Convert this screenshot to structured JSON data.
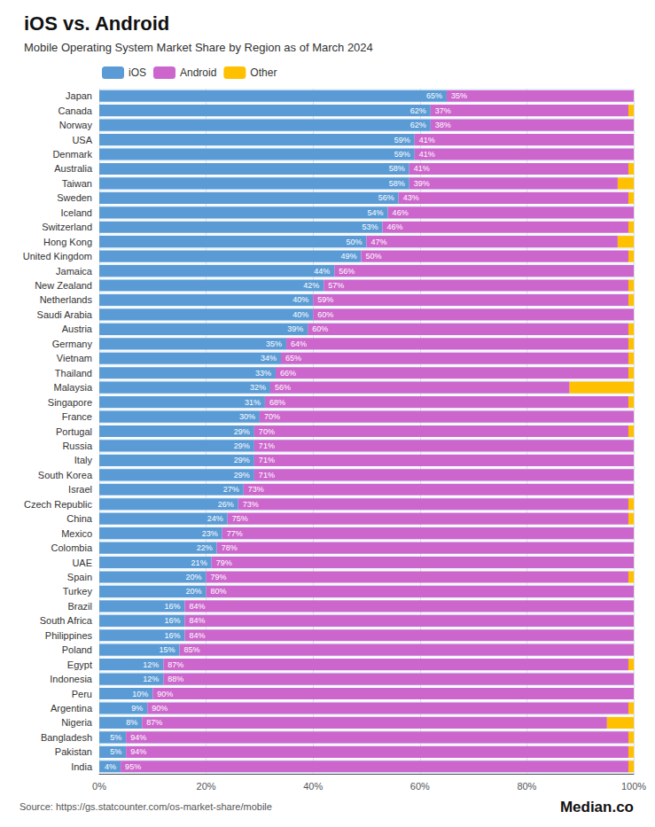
{
  "chart_data": {
    "type": "bar",
    "orientation": "horizontal",
    "stacked": true,
    "title": "iOS vs. Android",
    "subtitle": "Mobile Operating System Market Share by Region as of March 2024",
    "annotations": [
      "Source: https://gs.statcounter.com/os-market-share/mobile",
      "Median.co"
    ],
    "categories": [
      "Japan",
      "Canada",
      "Norway",
      "USA",
      "Denmark",
      "Australia",
      "Taiwan",
      "Sweden",
      "Iceland",
      "Switzerland",
      "Hong Kong",
      "United Kingdom",
      "Jamaica",
      "New Zealand",
      "Netherlands",
      "Saudi Arabia",
      "Austria",
      "Germany",
      "Vietnam",
      "Thailand",
      "Malaysia",
      "Singapore",
      "France",
      "Portugal",
      "Russia",
      "Italy",
      "South Korea",
      "Israel",
      "Czech Republic",
      "China",
      "Mexico",
      "Colombia",
      "UAE",
      "Spain",
      "Turkey",
      "Brazil",
      "South Africa",
      "Philippines",
      "Poland",
      "Egypt",
      "Indonesia",
      "Peru",
      "Argentina",
      "Nigeria",
      "Bangladesh",
      "Pakistan",
      "India"
    ],
    "series": [
      {
        "name": "iOS",
        "color": "#5B9BD5",
        "data_labels": true,
        "values": [
          65,
          62,
          62,
          59,
          59,
          58,
          58,
          56,
          54,
          53,
          50,
          49,
          44,
          42,
          40,
          40,
          39,
          35,
          34,
          33,
          32,
          31,
          30,
          29,
          29,
          29,
          29,
          27,
          26,
          24,
          23,
          22,
          21,
          20,
          20,
          16,
          16,
          16,
          15,
          12,
          12,
          10,
          9,
          8,
          5,
          5,
          4
        ],
        "value_labels": [
          "65%",
          "62%",
          "62%",
          "59%",
          "59%",
          "58%",
          "58%",
          "56%",
          "54%",
          "53%",
          "50%",
          "49%",
          "44%",
          "42%",
          "40%",
          "40%",
          "39%",
          "35%",
          "34%",
          "33%",
          "32%",
          "31%",
          "30%",
          "29%",
          "29%",
          "29%",
          "29%",
          "27%",
          "26%",
          "24%",
          "23%",
          "22%",
          "21%",
          "20%",
          "20%",
          "16%",
          "16%",
          "16%",
          "15%",
          "12%",
          "12%",
          "10%",
          "9%",
          "8%",
          "5%",
          "5%",
          "4%"
        ]
      },
      {
        "name": "Android",
        "color": "#CC66CC",
        "data_labels": true,
        "values": [
          35,
          37,
          38,
          41,
          41,
          41,
          39,
          43,
          46,
          46,
          47,
          50,
          56,
          57,
          59,
          60,
          60,
          64,
          65,
          66,
          56,
          68,
          70,
          70,
          71,
          71,
          71,
          73,
          73,
          75,
          77,
          78,
          79,
          79,
          80,
          84,
          84,
          84,
          85,
          87,
          88,
          90,
          90,
          87,
          94,
          94,
          95
        ],
        "value_labels": [
          "35%",
          "37%",
          "38%",
          "41%",
          "41%",
          "41%",
          "39%",
          "43%",
          "46%",
          "46%",
          "47%",
          "50%",
          "56%",
          "57%",
          "59%",
          "60%",
          "60%",
          "64%",
          "65%",
          "66%",
          "56%",
          "68%",
          "70%",
          "70%",
          "71%",
          "71%",
          "71%",
          "73%",
          "73%",
          "75%",
          "77%",
          "78%",
          "79%",
          "79%",
          "80%",
          "84%",
          "84%",
          "84%",
          "85%",
          "87%",
          "88%",
          "90%",
          "90%",
          "87%",
          "94%",
          "94%",
          "95%"
        ]
      },
      {
        "name": "Other",
        "color": "#FFC000",
        "data_labels": false,
        "values": [
          0,
          1,
          0,
          0,
          0,
          1,
          3,
          1,
          0,
          1,
          3,
          1,
          0,
          1,
          1,
          0,
          1,
          1,
          1,
          1,
          12,
          1,
          0,
          1,
          0,
          0,
          0,
          0,
          1,
          1,
          0,
          0,
          0,
          1,
          0,
          0,
          0,
          0,
          0,
          1,
          0,
          0,
          1,
          5,
          1,
          1,
          1
        ]
      }
    ],
    "xlim": [
      0,
      100
    ],
    "xticks": [
      {
        "value": 0,
        "label": "0%"
      },
      {
        "value": 20,
        "label": "20%"
      },
      {
        "value": 40,
        "label": "40%"
      },
      {
        "value": 60,
        "label": "60%"
      },
      {
        "value": 80,
        "label": "80%"
      },
      {
        "value": 100,
        "label": "100%"
      }
    ],
    "grid": true,
    "legend": "top-left"
  }
}
